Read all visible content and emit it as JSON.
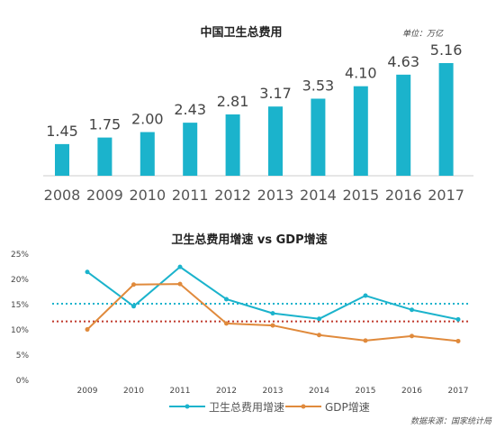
{
  "chart_data": [
    {
      "type": "bar",
      "title": "中国卫生总费用",
      "unit_note": "单位：万亿",
      "categories": [
        "2008",
        "2009",
        "2010",
        "2011",
        "2012",
        "2013",
        "2014",
        "2015",
        "2016",
        "2017"
      ],
      "values": [
        1.45,
        1.75,
        2.0,
        2.43,
        2.81,
        3.17,
        3.53,
        4.1,
        4.63,
        5.16
      ],
      "value_labels": [
        "1.45",
        "1.75",
        "2.00",
        "2.43",
        "2.81",
        "3.17",
        "3.53",
        "4.10",
        "4.63",
        "5.16"
      ],
      "bar_color": "#1bb3cc",
      "ylim": [
        0,
        5.5
      ]
    },
    {
      "type": "line",
      "title": "卫生总费用增速 vs GDP增速",
      "x": [
        "2009",
        "2010",
        "2011",
        "2012",
        "2013",
        "2014",
        "2015",
        "2016",
        "2017"
      ],
      "yticks": [
        "0%",
        "5%",
        "10%",
        "15%",
        "20%",
        "25%"
      ],
      "ylim": [
        0,
        25
      ],
      "series": [
        {
          "name": "卫生总费用增速",
          "color": "#1bb3cc",
          "values": [
            21.3,
            14.5,
            22.3,
            15.9,
            13.1,
            12.0,
            16.6,
            13.8,
            11.9
          ]
        },
        {
          "name": "GDP增速",
          "color": "#e08a3c",
          "values": [
            9.9,
            18.8,
            18.9,
            11.1,
            10.7,
            8.8,
            7.7,
            8.6,
            7.6
          ]
        }
      ],
      "reference_lines": [
        {
          "value": 15.0,
          "color": "#1bb3cc"
        },
        {
          "value": 11.5,
          "color": "#c0392b"
        }
      ],
      "legend_position": "bottom-center",
      "source": "数据来源：国家统计局"
    }
  ]
}
